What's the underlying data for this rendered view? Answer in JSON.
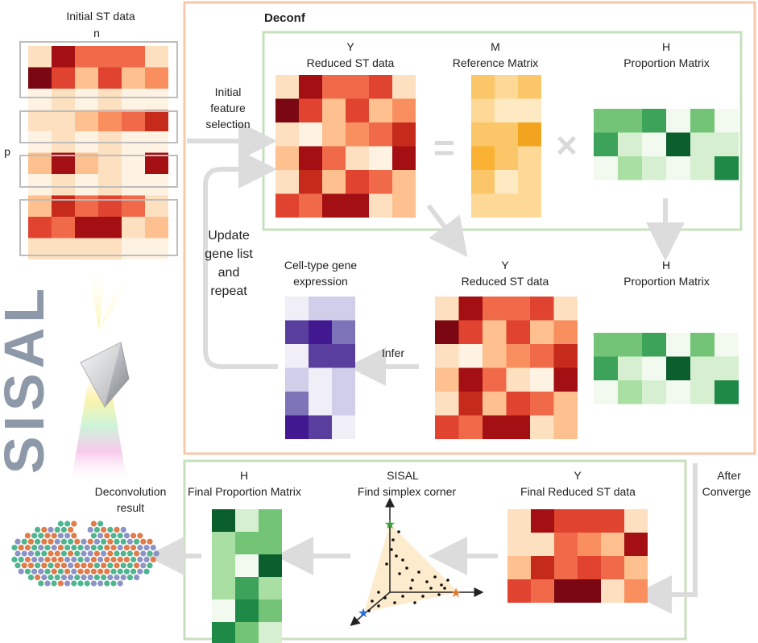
{
  "initial": {
    "title": "Initial ST data",
    "n_label": "n",
    "p_label": "p"
  },
  "logo": {
    "text": "SISAL"
  },
  "deconf": {
    "title": "Deconf",
    "y_symbol": "Y",
    "y_title": "Reduced ST data",
    "m_symbol": "M",
    "m_title": "Reference Matrix",
    "h_symbol": "H",
    "h_title": "Proportion Matrix",
    "equals": "=",
    "times": "×",
    "y2_symbol": "Y",
    "y2_title": "Reduced ST data",
    "h2_symbol": "H",
    "h2_title": "Proportion Matrix",
    "cell_title_1": "Cell-type gene",
    "cell_title_2": "expression",
    "infer": "Infer"
  },
  "flow": {
    "initial_feature_1": "Initial",
    "initial_feature_2": "feature",
    "initial_feature_3": "selection",
    "update_1": "Update",
    "update_2": "gene list",
    "update_3": "and",
    "update_4": "repeat",
    "after_1": "After",
    "after_2": "Converge"
  },
  "bottom": {
    "deconv_1": "Deconvolution",
    "deconv_2": "result",
    "hf_symbol": "H",
    "hf_title": "Final Proportion Matrix",
    "sisal_title": "SISAL",
    "sisal_sub": "Find simplex corner",
    "yf_symbol": "Y",
    "yf_title": "Final Reduced ST data"
  },
  "colors": {
    "panel_orange": "#f6c8aa",
    "panel_green": "#c7e0bc",
    "arrow": "#dcdcdc",
    "reds": [
      "#fef3e2",
      "#fde0c0",
      "#fdc08e",
      "#f98f5f",
      "#f06a4a",
      "#e04430",
      "#c52a1a",
      "#a30f12",
      "#7a0711"
    ],
    "greens": [
      "#f2f9ef",
      "#d6efd0",
      "#aadfa4",
      "#73c476",
      "#3da35b",
      "#1f8a48",
      "#0b5f2d"
    ],
    "oranges": [
      "#fde9c2",
      "#fdd897",
      "#fbc667",
      "#f9b233",
      "#f3a41f"
    ],
    "purples": [
      "#f0eff8",
      "#d0cee8",
      "#9f9bcd",
      "#7c73b8",
      "#5a3e9e",
      "#41188f"
    ]
  },
  "matrices": {
    "initial_grid": [
      [
        1,
        7,
        4,
        4,
        4,
        1
      ],
      [
        8,
        5,
        2,
        5,
        2,
        3
      ],
      [
        0,
        1,
        0,
        1,
        0,
        0
      ],
      [
        1,
        1,
        2,
        3,
        4,
        6
      ],
      [
        0,
        1,
        0,
        1,
        0,
        0
      ],
      [
        2,
        7,
        2,
        1,
        0,
        7
      ],
      [
        0,
        1,
        0,
        1,
        0,
        0
      ],
      [
        2,
        6,
        4,
        5,
        4,
        1
      ],
      [
        5,
        4,
        7,
        7,
        1,
        2
      ],
      [
        1,
        1,
        1,
        1,
        0,
        0
      ]
    ],
    "y_grid": [
      [
        1,
        7,
        4,
        4,
        5,
        1
      ],
      [
        8,
        5,
        2,
        5,
        2,
        3
      ],
      [
        1,
        0,
        2,
        3,
        4,
        6
      ],
      [
        2,
        7,
        4,
        1,
        0,
        7
      ],
      [
        1,
        6,
        2,
        5,
        4,
        2
      ],
      [
        5,
        4,
        7,
        7,
        1,
        2
      ]
    ],
    "m_grid": [
      [
        2,
        1,
        2
      ],
      [
        1,
        0,
        0
      ],
      [
        2,
        2,
        4
      ],
      [
        3,
        2,
        1
      ],
      [
        2,
        0,
        1
      ],
      [
        1,
        1,
        1
      ]
    ],
    "h_grid": [
      [
        3,
        3,
        4,
        0,
        3,
        0
      ],
      [
        4,
        1,
        0,
        6,
        1,
        1
      ],
      [
        0,
        2,
        1,
        0,
        1,
        5
      ]
    ],
    "y2_grid": [
      [
        1,
        7,
        4,
        4,
        5,
        1
      ],
      [
        8,
        5,
        2,
        5,
        2,
        3
      ],
      [
        1,
        0,
        2,
        3,
        4,
        6
      ],
      [
        2,
        7,
        4,
        1,
        0,
        7
      ],
      [
        1,
        6,
        2,
        5,
        4,
        2
      ],
      [
        5,
        4,
        7,
        7,
        1,
        2
      ]
    ],
    "h2_grid": [
      [
        3,
        3,
        4,
        0,
        3,
        0
      ],
      [
        4,
        1,
        0,
        6,
        1,
        1
      ],
      [
        0,
        2,
        1,
        0,
        1,
        5
      ]
    ],
    "cell_grid": [
      [
        0,
        1,
        1
      ],
      [
        4,
        5,
        3
      ],
      [
        0,
        4,
        4
      ],
      [
        1,
        0,
        1
      ],
      [
        3,
        0,
        1
      ],
      [
        5,
        4,
        0
      ]
    ],
    "hf_grid": [
      [
        6,
        1,
        3
      ],
      [
        2,
        3,
        3
      ],
      [
        2,
        0,
        6
      ],
      [
        2,
        4,
        2
      ],
      [
        0,
        5,
        3
      ],
      [
        5,
        3,
        1
      ]
    ],
    "yf_grid": [
      [
        1,
        7,
        5,
        5,
        5,
        1
      ],
      [
        1,
        1,
        4,
        3,
        2,
        7
      ],
      [
        2,
        6,
        4,
        5,
        4,
        2
      ],
      [
        5,
        4,
        8,
        8,
        1,
        3
      ]
    ]
  }
}
